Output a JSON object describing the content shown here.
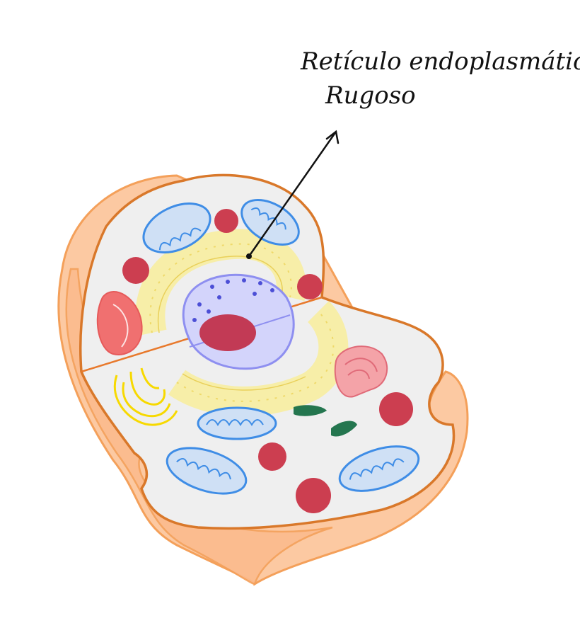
{
  "label": {
    "line1": "Retículo endoplasmático",
    "line2": "Rugoso"
  },
  "colors": {
    "membrane_outer": "#f4a05a",
    "membrane_fill": "#fcc9a2",
    "cytoplasm": "#efefef",
    "cell_outline": "#d9782a",
    "mitochondria": "#3f8de6",
    "mitochondria_fill": "#cfe0f5",
    "lysosome": "#cc3e50",
    "golgi": "#f2e27a",
    "golgi_fill": "#f7eea8",
    "nucleus": "#8e8ff0",
    "nucleus_fill": "#d3d4fb",
    "nucleolus": "#c23a55",
    "chloroplast_like": "#f07070",
    "ribosome_cluster": "#24764f",
    "smooth_er": "#f7d900",
    "arrow": "#111111"
  }
}
